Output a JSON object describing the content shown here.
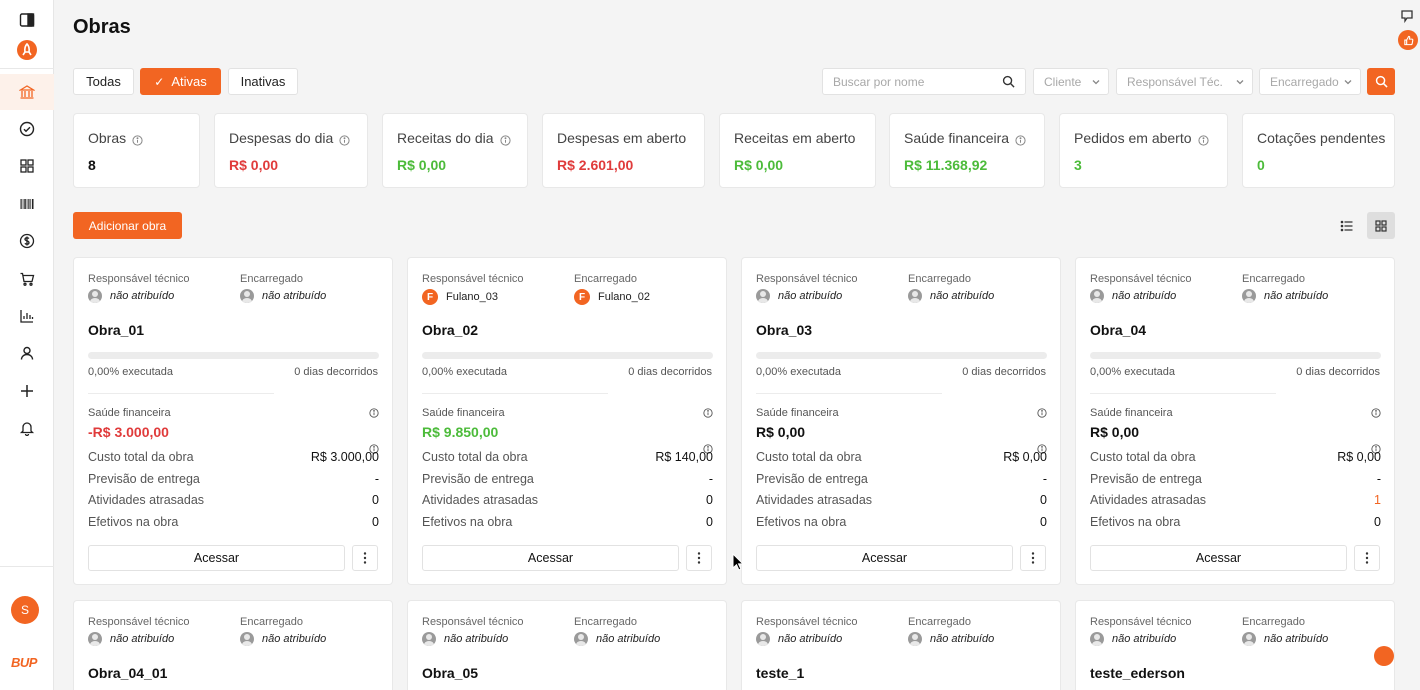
{
  "page": {
    "title": "Obras"
  },
  "colors": {
    "accent": "#f26522",
    "negative": "#e03b3b",
    "positive": "#4cbb3a"
  },
  "sidebar": {
    "icons": [
      "sidebar-toggle-icon",
      "rocket-icon",
      "bank-icon",
      "check-circle-icon",
      "grid-icon",
      "barcode-icon",
      "dollar-icon",
      "cart-icon",
      "bar-chart-icon",
      "user-icon",
      "plus-icon",
      "bell-icon"
    ],
    "active": "bank-icon",
    "avatar_initial": "S",
    "brand": "BUP"
  },
  "filters": {
    "all_label": "Todas",
    "active_label": "Ativas",
    "inactive_label": "Inativas",
    "search_placeholder": "Buscar por nome",
    "client_placeholder": "Cliente",
    "responsible_placeholder": "Responsável Téc.",
    "manager_placeholder": "Encarregado"
  },
  "stats": [
    {
      "label": "Obras",
      "value": "8",
      "tone": "dark",
      "info": true
    },
    {
      "label": "Despesas do dia",
      "value": "R$ 0,00",
      "tone": "red",
      "info": true
    },
    {
      "label": "Receitas do dia",
      "value": "R$ 0,00",
      "tone": "green",
      "info": true
    },
    {
      "label": "Despesas em aberto",
      "value": "R$ 2.601,00",
      "tone": "red",
      "info": false
    },
    {
      "label": "Receitas em aberto",
      "value": "R$ 0,00",
      "tone": "green",
      "info": false
    },
    {
      "label": "Saúde financeira",
      "value": "R$ 11.368,92",
      "tone": "green",
      "info": true
    },
    {
      "label": "Pedidos em aberto",
      "value": "3",
      "tone": "green",
      "info": true
    },
    {
      "label": "Cotações pendentes",
      "value": "0",
      "tone": "green",
      "info": false
    }
  ],
  "actions": {
    "add_label": "Adicionar obra"
  },
  "card_labels": {
    "responsible": "Responsável técnico",
    "manager": "Encarregado",
    "financial_health": "Saúde financeira",
    "total_cost": "Custo total da obra",
    "delivery_forecast": "Previsão de entrega",
    "late_activities": "Atividades atrasadas",
    "workers": "Efetivos na obra",
    "access": "Acessar"
  },
  "cards": [
    {
      "responsible": "não atribuído",
      "manager": "não atribuído",
      "name": "Obra_01",
      "progress": 0,
      "executed": "0,00% executada",
      "days": "0 dias decorridos",
      "health": "-R$ 3.000,00",
      "health_tone": "red",
      "cost": "R$ 3.000,00",
      "delivery": "-",
      "late": "0",
      "workers": "0"
    },
    {
      "responsible": "Fulano_03",
      "responsible_initial": "F",
      "manager": "Fulano_02",
      "manager_initial": "F",
      "name": "Obra_02",
      "progress": 0,
      "executed": "0,00% executada",
      "days": "0 dias decorridos",
      "health": "R$ 9.850,00",
      "health_tone": "green",
      "cost": "R$ 140,00",
      "delivery": "-",
      "late": "0",
      "workers": "0"
    },
    {
      "responsible": "não atribuído",
      "manager": "não atribuído",
      "name": "Obra_03",
      "progress": 0,
      "executed": "0,00% executada",
      "days": "0 dias decorridos",
      "health": "R$ 0,00",
      "health_tone": "dark",
      "cost": "R$ 0,00",
      "delivery": "-",
      "late": "0",
      "workers": "0"
    },
    {
      "responsible": "não atribuído",
      "manager": "não atribuído",
      "name": "Obra_04",
      "progress": 0,
      "executed": "0,00% executada",
      "days": "0 dias decorridos",
      "health": "R$ 0,00",
      "health_tone": "dark",
      "cost": "R$ 0,00",
      "delivery": "-",
      "late": "1",
      "late_tone": "orange",
      "workers": "0"
    },
    {
      "responsible": "não atribuído",
      "manager": "não atribuído",
      "name": "Obra_04_01"
    },
    {
      "responsible": "não atribuído",
      "manager": "não atribuído",
      "name": "Obra_05"
    },
    {
      "responsible": "não atribuído",
      "manager": "não atribuído",
      "name": "teste_1"
    },
    {
      "responsible": "não atribuído",
      "manager": "não atribuído",
      "name": "teste_ederson"
    }
  ]
}
